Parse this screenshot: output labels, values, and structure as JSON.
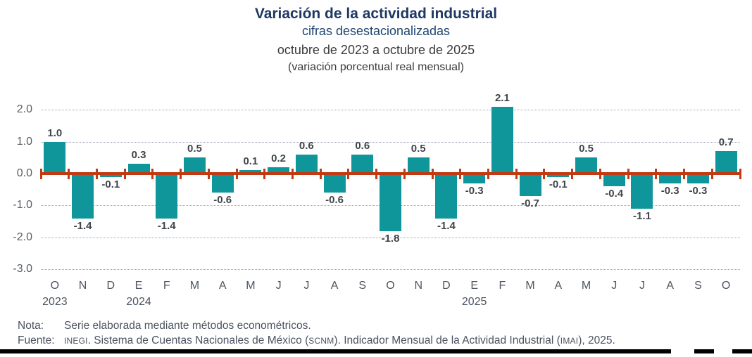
{
  "header": {
    "title": "Variación de la actividad industrial",
    "subtitle": "cifras desestacionalizadas",
    "period": "octubre de 2023 a octubre de 2025",
    "measure": "(variación porcentual real mensual)"
  },
  "chart_data": {
    "type": "bar",
    "title": "Variación de la actividad industrial",
    "x": [
      "O",
      "N",
      "D",
      "E",
      "F",
      "M",
      "A",
      "M",
      "J",
      "J",
      "A",
      "S",
      "O",
      "N",
      "D",
      "E",
      "F",
      "M",
      "A",
      "M",
      "J",
      "J",
      "A",
      "S",
      "O"
    ],
    "values": [
      1.0,
      -1.4,
      -0.1,
      0.3,
      -1.4,
      0.5,
      -0.6,
      0.1,
      0.2,
      0.6,
      -0.6,
      0.6,
      -1.8,
      0.5,
      -1.4,
      -0.3,
      2.1,
      -0.7,
      -0.1,
      0.5,
      -0.4,
      -1.1,
      -0.3,
      -0.3,
      0.7
    ],
    "value_labels": [
      "1.0",
      "-1.4",
      "-0.1",
      "0.3",
      "-1.4",
      "0.5",
      "-0.6",
      "0.1",
      "0.2",
      "0.6",
      "-0.6",
      "0.6",
      "-1.8",
      "0.5",
      "-1.4",
      "-0.3",
      "2.1",
      "-0.7",
      "-0.1",
      "0.5",
      "-0.4",
      "-1.1",
      "-0.3",
      "-0.3",
      "0.7"
    ],
    "year_labels": [
      {
        "text": "2023",
        "index": 0
      },
      {
        "text": "2024",
        "index": 3
      },
      {
        "text": "2025",
        "index": 15
      }
    ],
    "yticks": [
      2.0,
      1.0,
      0.0,
      -1.0,
      -2.0,
      -3.0
    ],
    "ytick_labels": [
      "2.0",
      "1.0",
      "0.0",
      "-1.0",
      "-2.0",
      "-3.0"
    ],
    "ylim": [
      -3.0,
      2.0
    ],
    "grid": "horizontal-dotted",
    "legend": "none",
    "bar_color": "#0f969b",
    "zero_line_color": "#c23a12"
  },
  "footer": {
    "nota_label": "Nota:",
    "nota_text": "Serie elaborada mediante métodos econométricos.",
    "fuente_label": "Fuente:",
    "fuente_segments": [
      {
        "text": "INEGI",
        "small": true
      },
      {
        "text": ". Sistema de Cuentas Nacionales de México (",
        "small": false
      },
      {
        "text": "SCNM",
        "small": true
      },
      {
        "text": "). Indicador Mensual de la Actividad Industrial (",
        "small": false
      },
      {
        "text": "IMAI",
        "small": true
      },
      {
        "text": "), 2025.",
        "small": false
      }
    ]
  }
}
